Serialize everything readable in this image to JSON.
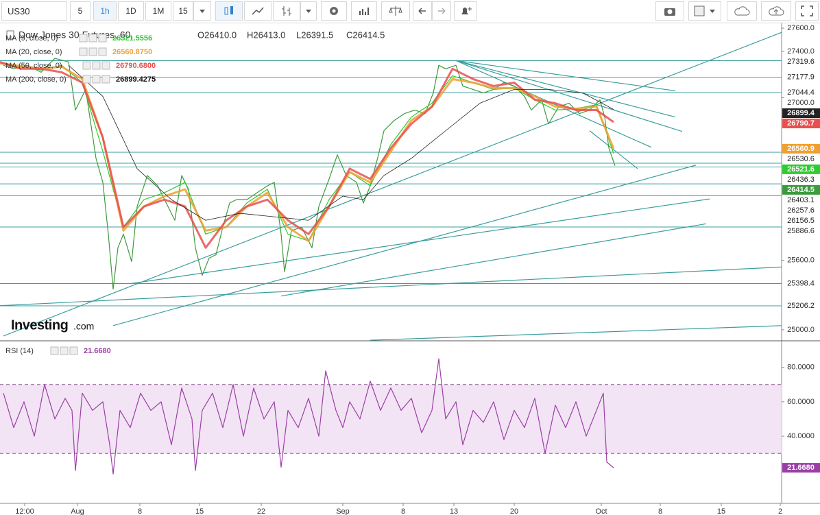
{
  "toolbar": {
    "symbol": "US30",
    "intervals": [
      "5",
      "1h",
      "1D",
      "1M",
      "15"
    ]
  },
  "chart_data": [
    {
      "type": "line",
      "title": "Dow Jones 30 Futures, 60,",
      "ohlc": [
        "O26410.0",
        "H26413.0",
        "L26391.5",
        "C26414.5"
      ],
      "watermark": [
        "Investing",
        ".com"
      ],
      "xlim": [
        0,
        1140
      ],
      "ylim": [
        24905,
        27630
      ],
      "yticks": [
        {
          "value": 27600,
          "label": "27600.0"
        },
        {
          "value": 27400,
          "label": "27400.0"
        },
        {
          "value": 27000,
          "label": "27000.0"
        },
        {
          "value": 25600,
          "label": "25600.0"
        },
        {
          "value": 25000,
          "label": "25000.0"
        }
      ],
      "levels": [
        27319.6,
        27177.9,
        27044.4,
        26530.6,
        26436.3,
        26403.1,
        26257.6,
        26156.5,
        25886.6,
        25398.4,
        25206.2
      ],
      "level_color": "#3a9e9e",
      "trendlines": [
        {
          "x": [
            5,
            1140
          ],
          "y": [
            24947,
            27564
          ]
        },
        {
          "x": [
            165,
            1015
          ],
          "y": [
            25036,
            26419
          ]
        },
        {
          "x": [
            190,
            1035
          ],
          "y": [
            25398,
            26128
          ]
        },
        {
          "x": [
            410,
            1030
          ],
          "y": [
            25291,
            25914
          ]
        },
        {
          "x": [
            0,
            1140
          ],
          "y": [
            25208,
            25541
          ]
        },
        {
          "x": [
            540,
            1140
          ],
          "y": [
            24910,
            25036
          ]
        },
        {
          "x": [
            665,
            985
          ],
          "y": [
            27321,
            27060
          ]
        },
        {
          "x": [
            665,
            985
          ],
          "y": [
            27321,
            26834
          ]
        },
        {
          "x": [
            665,
            995
          ],
          "y": [
            27321,
            26710
          ]
        },
        {
          "x": [
            665,
            950
          ],
          "y": [
            27321,
            26573
          ]
        },
        {
          "x": [
            860,
            930
          ],
          "y": [
            26716,
            26389
          ]
        }
      ],
      "series": [
        {
          "name": "US30",
          "color": "#3d9a3d",
          "badge": "26414.5",
          "x": [
            5,
            20,
            40,
            60,
            80,
            100,
            110,
            125,
            140,
            150,
            158,
            165,
            172,
            180,
            192,
            200,
            215,
            230,
            245,
            255,
            265,
            275,
            285,
            295,
            305,
            315,
            325,
            335,
            345,
            360,
            375,
            390,
            400,
            410,
            415,
            425,
            440,
            455,
            465,
            480,
            492,
            505,
            520,
            530,
            540,
            552,
            560,
            575,
            590,
            605,
            620,
            632,
            640,
            650,
            665,
            675,
            690,
            705,
            720,
            735,
            750,
            765,
            775,
            790,
            800,
            815,
            830,
            845,
            860,
            875,
            882,
            888,
            897
          ],
          "values": [
            27280,
            27250,
            27280,
            27220,
            27340,
            27309,
            26894,
            27072,
            26478,
            26271,
            25825,
            25350,
            25707,
            25825,
            25588,
            26063,
            26330,
            26241,
            26063,
            25944,
            26330,
            26211,
            25707,
            25470,
            25618,
            25647,
            25885,
            26093,
            26122,
            26122,
            26182,
            26241,
            26271,
            25825,
            25500,
            25855,
            25885,
            25707,
            26063,
            26300,
            26508,
            26330,
            26271,
            26093,
            26241,
            26508,
            26716,
            26805,
            26864,
            26894,
            26864,
            27042,
            27280,
            27250,
            27280,
            27101,
            27072,
            27042,
            27072,
            27131,
            27101,
            27012,
            26894,
            26983,
            26775,
            26923,
            26953,
            26864,
            26894,
            26983,
            26834,
            26567,
            26414.5
          ]
        },
        {
          "name": "MA (9, close, 0)",
          "color": "#2ecc2e",
          "legend_value": "26521.5556",
          "badge": "26521.6",
          "x": [
            0,
            30,
            60,
            90,
            120,
            150,
            180,
            210,
            240,
            270,
            300,
            330,
            360,
            390,
            420,
            450,
            480,
            510,
            540,
            570,
            600,
            630,
            660,
            690,
            720,
            750,
            780,
            810,
            840,
            870,
            895
          ],
          "values": [
            27297,
            27268,
            27238,
            27280,
            27131,
            26538,
            25885,
            26122,
            26182,
            26271,
            25825,
            25885,
            26093,
            26211,
            25825,
            25766,
            26122,
            26360,
            26241,
            26597,
            26834,
            26953,
            27190,
            27131,
            27072,
            27084,
            26983,
            26894,
            26906,
            26941,
            26521.5556
          ]
        },
        {
          "name": "MA (20, close, 0)",
          "color": "#f0a030",
          "legend_value": "26560.8750",
          "badge": "26560.9",
          "x": [
            0,
            30,
            60,
            90,
            120,
            150,
            180,
            210,
            240,
            270,
            300,
            330,
            360,
            390,
            420,
            450,
            480,
            510,
            540,
            570,
            600,
            630,
            660,
            690,
            720,
            750,
            780,
            810,
            840,
            870,
            895
          ],
          "values": [
            27297,
            27274,
            27250,
            27268,
            27161,
            26656,
            25855,
            26063,
            26152,
            26211,
            25855,
            25885,
            26063,
            26182,
            25885,
            25766,
            26063,
            26360,
            26271,
            26538,
            26805,
            26923,
            27161,
            27131,
            27084,
            27084,
            27012,
            26923,
            26906,
            26923,
            26560.875
          ]
        },
        {
          "name": "MA (50, close, 0)",
          "color": "#e85050",
          "legend_value": "26790.6800",
          "badge": "26790.7",
          "x": [
            0,
            30,
            60,
            90,
            120,
            150,
            180,
            210,
            240,
            270,
            300,
            330,
            360,
            390,
            420,
            450,
            480,
            510,
            540,
            570,
            600,
            630,
            660,
            690,
            720,
            750,
            780,
            810,
            840,
            870,
            895
          ],
          "values": [
            27309,
            27250,
            27250,
            27220,
            27131,
            26656,
            25885,
            26063,
            26122,
            26063,
            25707,
            25944,
            26063,
            26122,
            25944,
            25825,
            26063,
            26389,
            26300,
            26567,
            26775,
            26923,
            27250,
            27161,
            27101,
            27131,
            26983,
            26953,
            26894,
            26894,
            26790.68
          ]
        },
        {
          "name": "MA (200, close, 0)",
          "color": "#222222",
          "legend_value": "26899.4275",
          "badge": "26899.4",
          "x": [
            100,
            150,
            200,
            250,
            300,
            350,
            400,
            450,
            500,
            530,
            560,
            600,
            650,
            700,
            750,
            800,
            850,
            895
          ],
          "values": [
            27280,
            27012,
            26389,
            26122,
            25944,
            26004,
            25974,
            25944,
            26152,
            26122,
            26330,
            26478,
            26716,
            26953,
            27072,
            27072,
            27042,
            26899.4275
          ]
        }
      ]
    },
    {
      "type": "line",
      "xlim": [
        0,
        1140
      ],
      "ylim": [
        1,
        95
      ],
      "yticks": [
        {
          "value": 80,
          "label": "80.0000"
        },
        {
          "value": 60,
          "label": "60.0000"
        },
        {
          "value": 40,
          "label": "40.0000"
        }
      ],
      "band": [
        30,
        70
      ],
      "band_color": "#f2e4f4",
      "xticks": [
        {
          "value": 36,
          "label": "12:00"
        },
        {
          "value": 113,
          "label": "Aug"
        },
        {
          "value": 204,
          "label": "8"
        },
        {
          "value": 291,
          "label": "15"
        },
        {
          "value": 381,
          "label": "22"
        },
        {
          "value": 500,
          "label": "Sep"
        },
        {
          "value": 588,
          "label": "8"
        },
        {
          "value": 662,
          "label": "13"
        },
        {
          "value": 750,
          "label": "20"
        },
        {
          "value": 877,
          "label": "Oct"
        },
        {
          "value": 963,
          "label": "8"
        },
        {
          "value": 1052,
          "label": "15"
        },
        {
          "value": 1138,
          "label": "2"
        }
      ],
      "series": [
        {
          "name": "RSI (14)",
          "color": "#9b3ea6",
          "legend_value": "21.6680",
          "badge": "21.6680",
          "x": [
            5,
            20,
            35,
            50,
            65,
            80,
            95,
            105,
            110,
            120,
            135,
            150,
            160,
            165,
            175,
            190,
            205,
            220,
            235,
            250,
            265,
            280,
            285,
            295,
            310,
            325,
            340,
            355,
            370,
            385,
            400,
            410,
            420,
            435,
            450,
            465,
            475,
            490,
            500,
            510,
            525,
            540,
            555,
            570,
            585,
            600,
            615,
            630,
            640,
            650,
            665,
            675,
            690,
            705,
            720,
            735,
            750,
            765,
            780,
            795,
            810,
            825,
            840,
            855,
            870,
            880,
            885,
            895
          ],
          "values": [
            65,
            45,
            60,
            40,
            70,
            50,
            62,
            55,
            20,
            65,
            55,
            60,
            35,
            18,
            55,
            45,
            65,
            55,
            60,
            35,
            68,
            50,
            20,
            55,
            65,
            45,
            70,
            40,
            68,
            50,
            60,
            22,
            55,
            45,
            62,
            40,
            78,
            55,
            45,
            60,
            50,
            72,
            55,
            68,
            55,
            62,
            42,
            55,
            85,
            50,
            60,
            35,
            55,
            48,
            60,
            38,
            55,
            45,
            62,
            30,
            58,
            45,
            60,
            40,
            55,
            65,
            25,
            21.668
          ]
        }
      ]
    }
  ]
}
